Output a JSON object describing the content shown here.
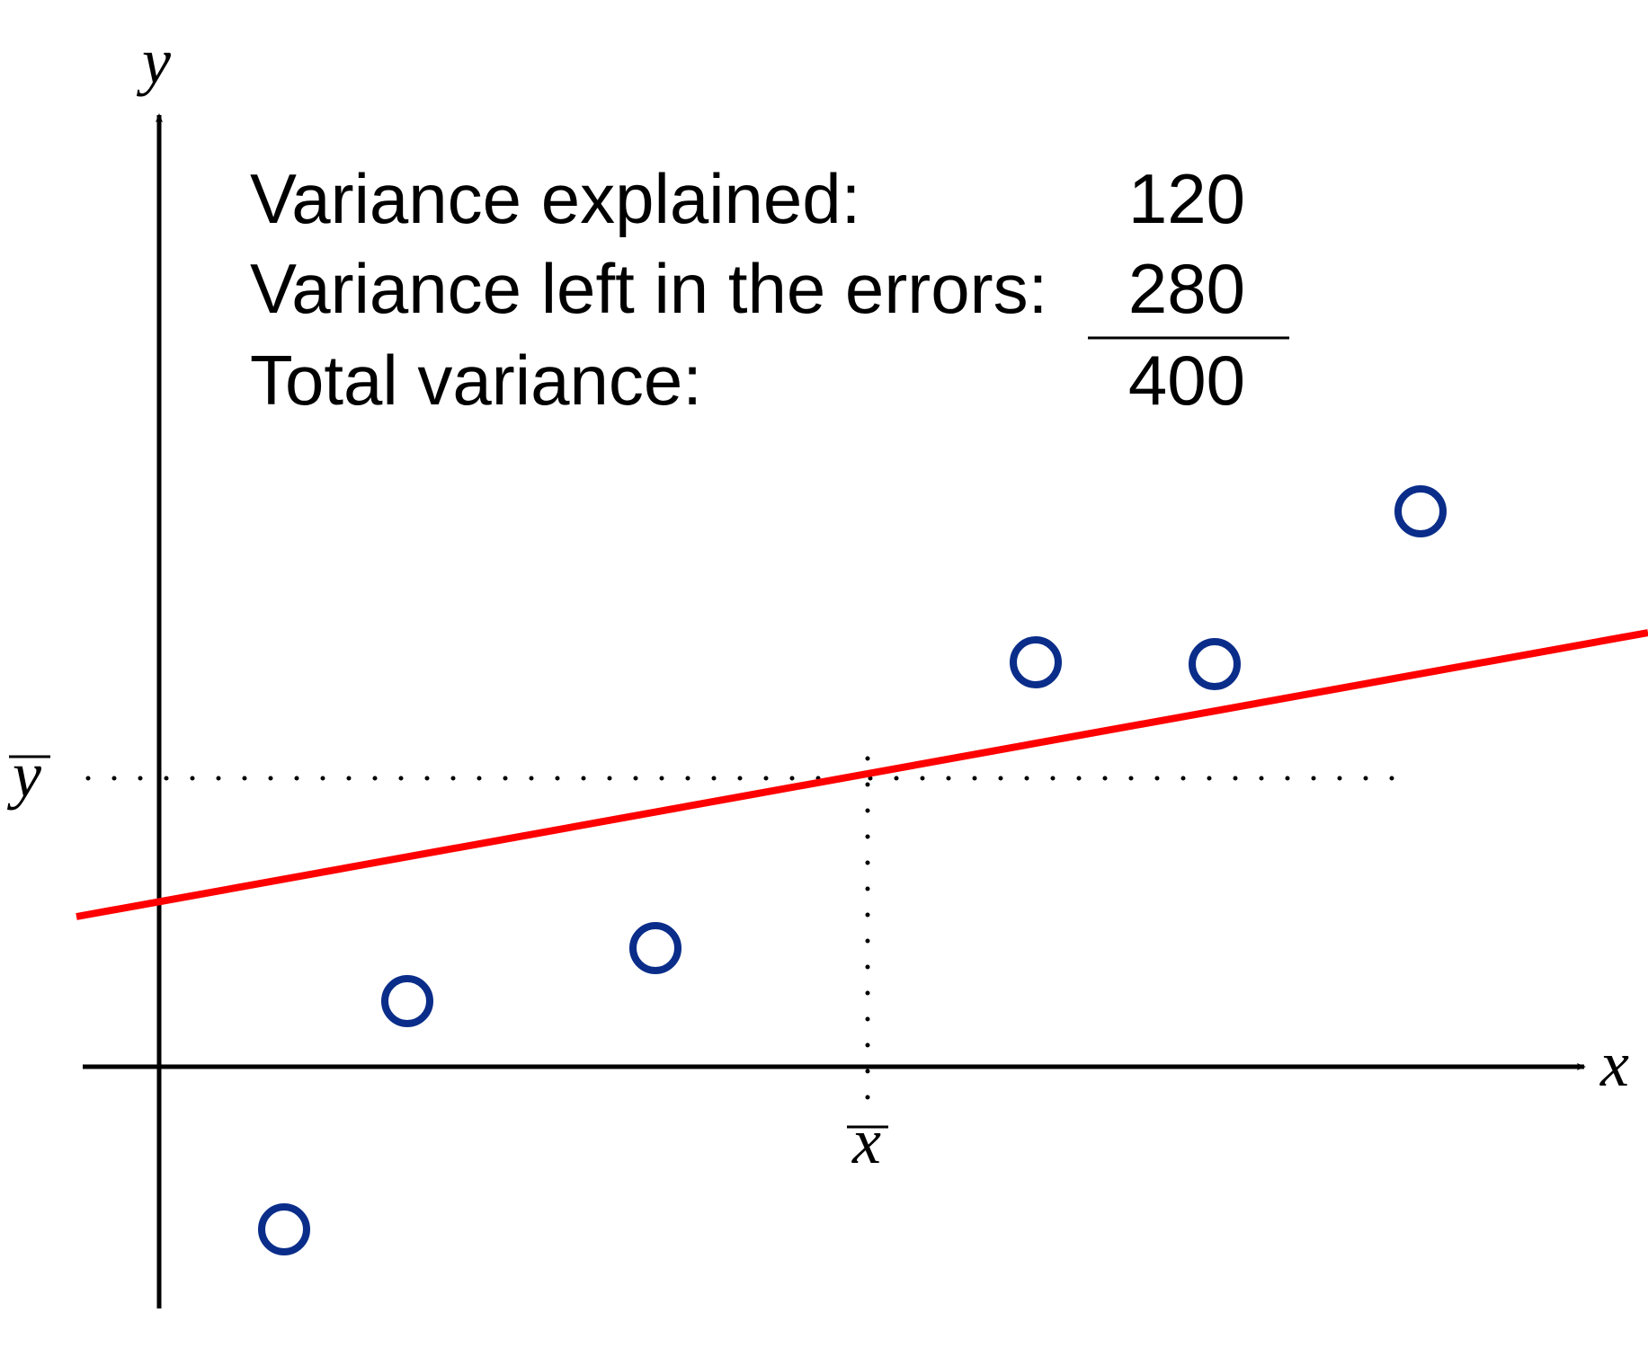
{
  "table": {
    "rows": [
      {
        "label": "Variance explained:",
        "value": "120"
      },
      {
        "label": "Variance left in the errors:",
        "value": "280"
      },
      {
        "label": "Total variance:",
        "value": "400"
      }
    ]
  },
  "axes": {
    "x_label": "x",
    "y_label": "y",
    "x_mean_label": "x",
    "y_mean_label": "y"
  },
  "colors": {
    "regression_line": "#ff0000",
    "points": "#0b2d8a",
    "axes": "#000000"
  }
}
